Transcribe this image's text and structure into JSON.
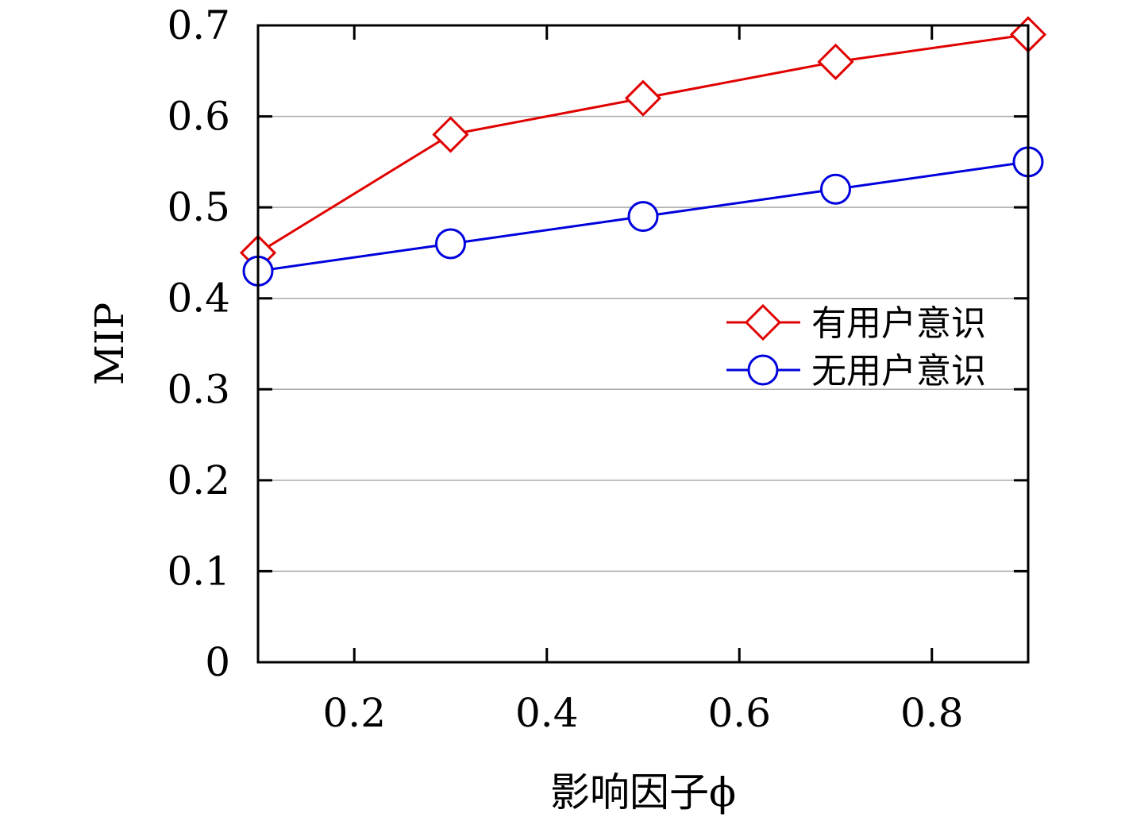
{
  "chart_data": {
    "type": "line",
    "title": "",
    "xlabel": "影响因子ϕ",
    "ylabel": "MIP",
    "xlim": [
      0.1,
      0.9
    ],
    "ylim": [
      0,
      0.7
    ],
    "xticks": [
      0.2,
      0.4,
      0.6,
      0.8
    ],
    "xtick_labels": [
      "0.2",
      "0.4",
      "0.6",
      "0.8"
    ],
    "yticks": [
      0,
      0.1,
      0.2,
      0.3,
      0.4,
      0.5,
      0.6,
      0.7
    ],
    "ytick_labels": [
      "0",
      "0.1",
      "0.2",
      "0.3",
      "0.4",
      "0.5",
      "0.6",
      "0.7"
    ],
    "grid": "horizontal",
    "legend_position": "right",
    "x": [
      0.1,
      0.3,
      0.5,
      0.7,
      0.9
    ],
    "series": [
      {
        "name": "有用户意识",
        "values": [
          0.45,
          0.58,
          0.62,
          0.66,
          0.69
        ],
        "color": "#e00000",
        "marker": "diamond"
      },
      {
        "name": "无用户意识",
        "values": [
          0.43,
          0.46,
          0.49,
          0.52,
          0.55
        ],
        "color": "#0000dd",
        "marker": "circle"
      }
    ]
  }
}
